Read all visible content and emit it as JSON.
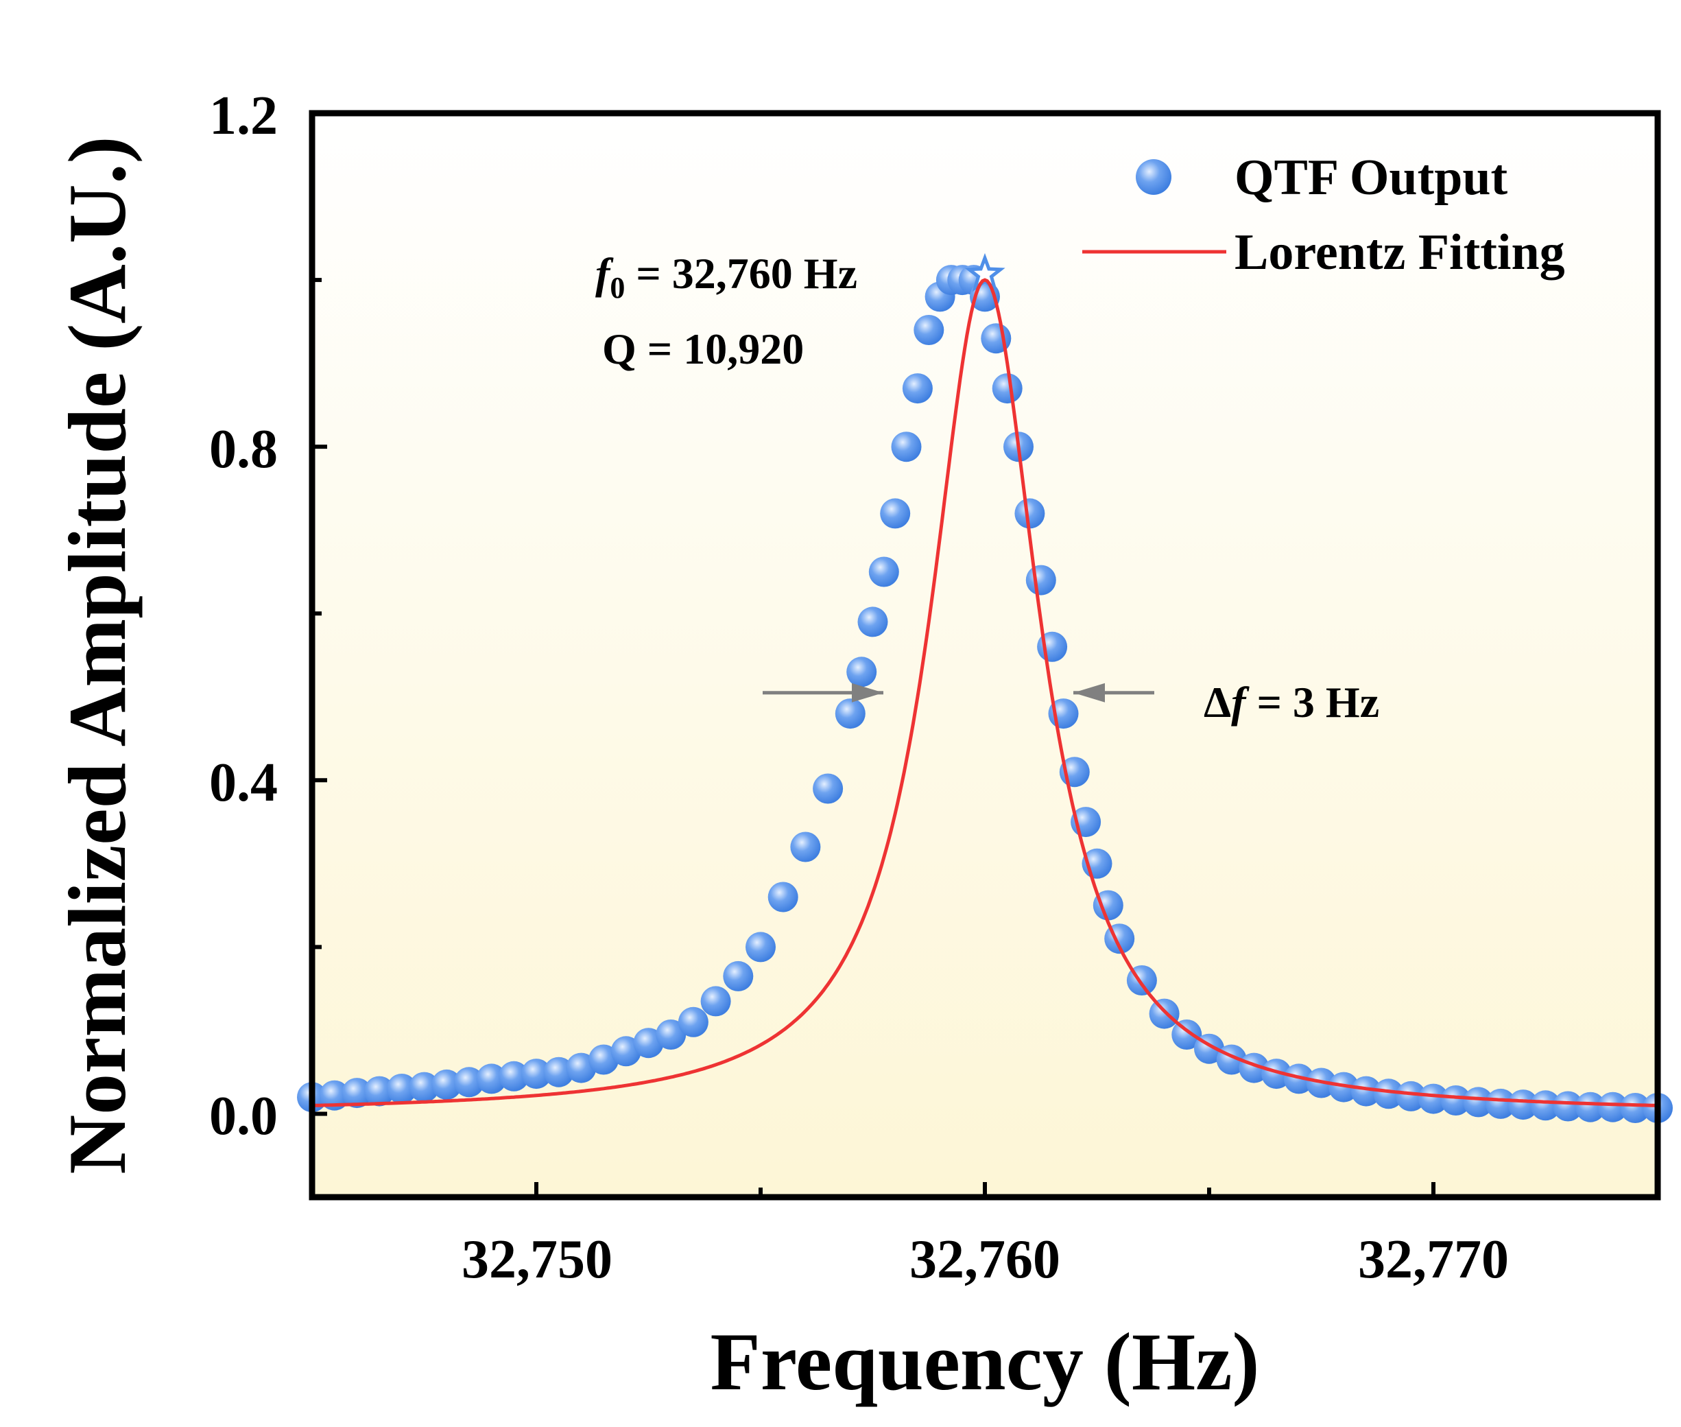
{
  "chart_data": {
    "type": "scatter",
    "xlabel": "Frequency (Hz)",
    "ylabel": "Normalized Amplitude (A.U.)",
    "xlim": [
      32745,
      32775
    ],
    "ylim": [
      -0.1,
      1.2
    ],
    "xticks": [
      32750,
      32760,
      32770
    ],
    "xtick_labels": [
      "32,750",
      "32,760",
      "32,770"
    ],
    "yticks": [
      0.0,
      0.4,
      0.8,
      1.2
    ],
    "ytick_labels": [
      "0.0",
      "0.4",
      "0.8",
      "1.2"
    ],
    "grid": false,
    "legend_position": "top-right",
    "background_gradient": [
      "#ffffff",
      "#fdf6d6"
    ],
    "lorentz": {
      "f0": 32760,
      "fwhm": 3,
      "peak": 1.0,
      "baseline": 0.0
    },
    "series": [
      {
        "name": "QTF Output",
        "kind": "markers",
        "color": "#4f8fe8",
        "x": [
          32745.0,
          32745.5,
          32746.0,
          32746.5,
          32747.0,
          32747.5,
          32748.0,
          32748.5,
          32749.0,
          32749.5,
          32750.0,
          32750.5,
          32751.0,
          32751.5,
          32752.0,
          32752.5,
          32753.0,
          32753.5,
          32754.0,
          32754.5,
          32755.0,
          32755.5,
          32756.0,
          32756.5,
          32757.0,
          32757.25,
          32757.5,
          32757.75,
          32758.0,
          32758.25,
          32758.5,
          32758.75,
          32759.0,
          32759.25,
          32759.5,
          32759.75,
          32760.0,
          32760.25,
          32760.5,
          32760.75,
          32761.0,
          32761.25,
          32761.5,
          32761.75,
          32762.0,
          32762.25,
          32762.5,
          32762.75,
          32763.0,
          32763.5,
          32764.0,
          32764.5,
          32765.0,
          32765.5,
          32766.0,
          32766.5,
          32767.0,
          32767.5,
          32768.0,
          32768.5,
          32769.0,
          32769.5,
          32770.0,
          32770.5,
          32771.0,
          32771.5,
          32772.0,
          32772.5,
          32773.0,
          32773.5,
          32774.0,
          32774.5,
          32775.0
        ],
        "y": [
          0.02,
          0.022,
          0.025,
          0.027,
          0.03,
          0.032,
          0.035,
          0.038,
          0.042,
          0.045,
          0.048,
          0.05,
          0.055,
          0.065,
          0.075,
          0.085,
          0.095,
          0.11,
          0.135,
          0.165,
          0.2,
          0.26,
          0.32,
          0.39,
          0.48,
          0.53,
          0.59,
          0.65,
          0.72,
          0.8,
          0.87,
          0.94,
          0.98,
          1.0,
          1.0,
          1.0,
          0.98,
          0.93,
          0.87,
          0.8,
          0.72,
          0.64,
          0.56,
          0.48,
          0.41,
          0.35,
          0.3,
          0.25,
          0.21,
          0.16,
          0.12,
          0.095,
          0.078,
          0.065,
          0.055,
          0.048,
          0.042,
          0.037,
          0.032,
          0.027,
          0.024,
          0.021,
          0.018,
          0.016,
          0.014,
          0.012,
          0.011,
          0.01,
          0.009,
          0.008,
          0.008,
          0.007,
          0.007
        ]
      },
      {
        "name": "Lorentz Fitting",
        "kind": "line",
        "color": "#ee3333"
      }
    ],
    "annotations": {
      "f0_symbol": "f",
      "f0_subscript": "0",
      "f0_value": " = 32,760 Hz",
      "q_text": "Q = 10,920",
      "df_delta": "Δ",
      "df_symbol": "f",
      "df_value": " = 3 Hz",
      "arrow_color": "#808080",
      "arrow_level": 0.5
    }
  }
}
